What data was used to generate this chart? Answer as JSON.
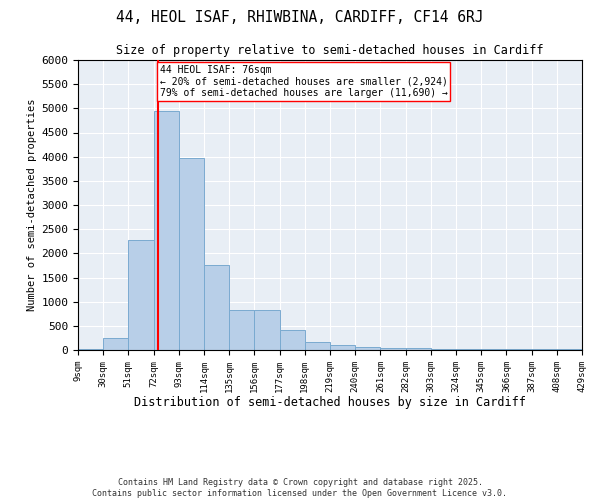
{
  "title": "44, HEOL ISAF, RHIWBINA, CARDIFF, CF14 6RJ",
  "subtitle": "Size of property relative to semi-detached houses in Cardiff",
  "xlabel": "Distribution of semi-detached houses by size in Cardiff",
  "ylabel": "Number of semi-detached properties",
  "bar_color": "#b8cfe8",
  "bar_edge_color": "#7aaad0",
  "background_color": "#e8eef5",
  "grid_color": "white",
  "annotation_line_color": "red",
  "annotation_box_color": "red",
  "property_value": 76,
  "annotation_line1": "44 HEOL ISAF: 76sqm",
  "annotation_line2": "← 20% of semi-detached houses are smaller (2,924)",
  "annotation_line3": "79% of semi-detached houses are larger (11,690) →",
  "bin_edges": [
    9,
    30,
    51,
    72,
    93,
    114,
    135,
    156,
    177,
    198,
    219,
    240,
    261,
    282,
    303,
    324,
    345,
    366,
    387,
    408,
    429
  ],
  "bin_counts": [
    30,
    250,
    2275,
    4950,
    3975,
    1750,
    830,
    830,
    410,
    160,
    100,
    55,
    45,
    40,
    30,
    30,
    30,
    25,
    20,
    20
  ],
  "ylim": [
    0,
    6000
  ],
  "yticks": [
    0,
    500,
    1000,
    1500,
    2000,
    2500,
    3000,
    3500,
    4000,
    4500,
    5000,
    5500,
    6000
  ],
  "footer_line1": "Contains HM Land Registry data © Crown copyright and database right 2025.",
  "footer_line2": "Contains public sector information licensed under the Open Government Licence v3.0."
}
